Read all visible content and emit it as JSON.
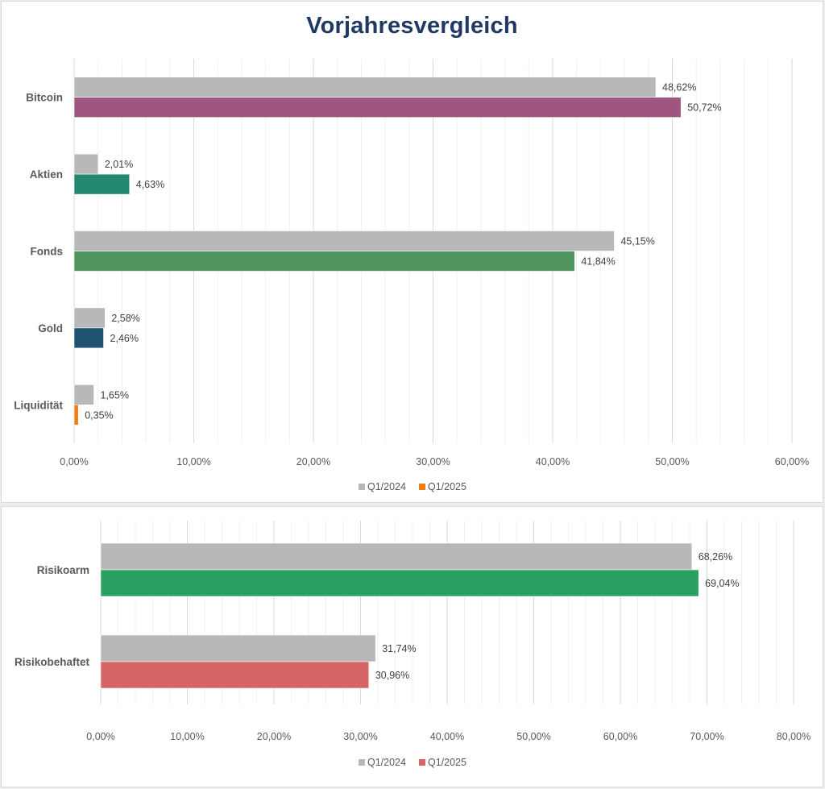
{
  "chart_data": [
    {
      "type": "bar",
      "orientation": "horizontal",
      "title": "Vorjahresvergleich",
      "categories": [
        "Bitcoin",
        "Aktien",
        "Fonds",
        "Gold",
        "Liquidität"
      ],
      "series": [
        {
          "name": "Q1/2024",
          "values": [
            48.62,
            2.01,
            45.15,
            2.58,
            1.65
          ],
          "labels": [
            "48,62%",
            "2,01%",
            "45,15%",
            "2,58%",
            "1,65%"
          ],
          "colors": [
            "#b8b8b8",
            "#b8b8b8",
            "#b8b8b8",
            "#b8b8b8",
            "#b8b8b8"
          ]
        },
        {
          "name": "Q1/2025",
          "values": [
            50.72,
            4.63,
            41.84,
            2.46,
            0.35
          ],
          "labels": [
            "50,72%",
            "4,63%",
            "41,84%",
            "2,46%",
            "0,35%"
          ],
          "colors": [
            "#9e5580",
            "#228870",
            "#509460",
            "#1f5470",
            "#f07c12"
          ]
        }
      ],
      "legend": [
        {
          "name": "Q1/2024",
          "color": "#b8b8b8"
        },
        {
          "name": "Q1/2025",
          "color": "#f07c12"
        }
      ],
      "legend_position": "bottom",
      "xlim": [
        0,
        60
      ],
      "xticks": [
        0,
        10,
        20,
        30,
        40,
        50,
        60
      ],
      "xtick_labels": [
        "0,00%",
        "10,00%",
        "20,00%",
        "30,00%",
        "40,00%",
        "50,00%",
        "60,00%"
      ],
      "minor_step": 2,
      "grid": true,
      "xlabel": "",
      "ylabel": ""
    },
    {
      "type": "bar",
      "orientation": "horizontal",
      "title": "",
      "categories": [
        "Risikoarm",
        "Risikobehaftet"
      ],
      "series": [
        {
          "name": "Q1/2024",
          "values": [
            68.26,
            31.74
          ],
          "labels": [
            "68,26%",
            "31,74%"
          ],
          "colors": [
            "#b8b8b8",
            "#b8b8b8"
          ]
        },
        {
          "name": "Q1/2025",
          "values": [
            69.04,
            30.96
          ],
          "labels": [
            "69,04%",
            "30,96%"
          ],
          "colors": [
            "#28a060",
            "#d66666"
          ]
        }
      ],
      "legend": [
        {
          "name": "Q1/2024",
          "color": "#b8b8b8"
        },
        {
          "name": "Q1/2025",
          "color": "#d66666"
        }
      ],
      "legend_position": "bottom",
      "xlim": [
        0,
        80
      ],
      "xticks": [
        0,
        10,
        20,
        30,
        40,
        50,
        60,
        70,
        80
      ],
      "xtick_labels": [
        "0,00%",
        "10,00%",
        "20,00%",
        "30,00%",
        "40,00%",
        "50,00%",
        "60,00%",
        "70,00%",
        "80,00%"
      ],
      "minor_step": 2,
      "grid": true,
      "xlabel": "",
      "ylabel": ""
    }
  ]
}
